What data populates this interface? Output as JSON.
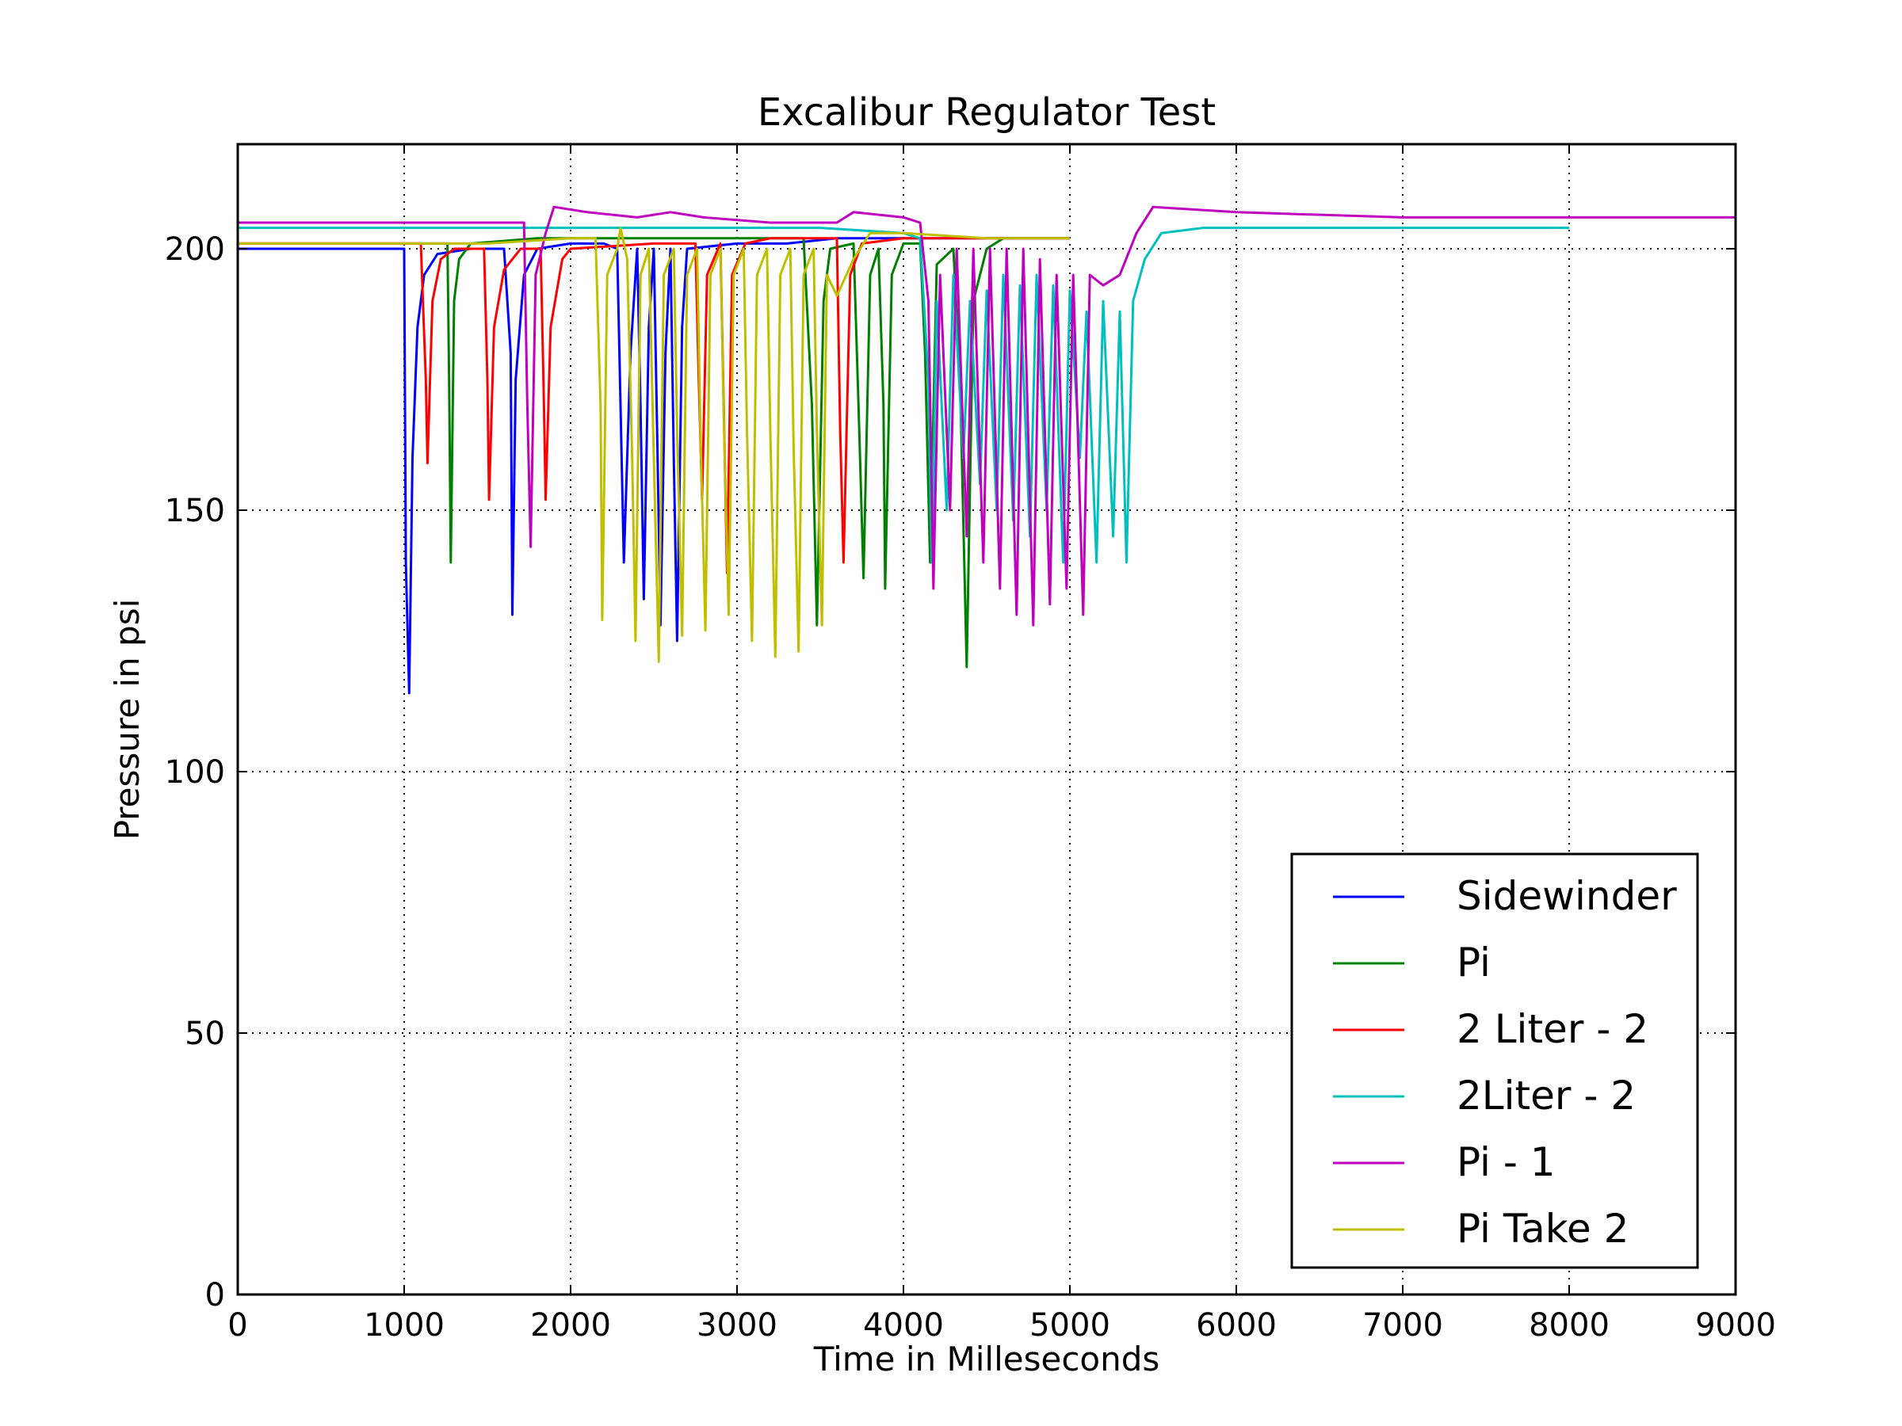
{
  "chart_data": {
    "type": "line",
    "title": "Excalibur Regulator Test",
    "xlabel": "Time in Milleseconds",
    "ylabel": "Pressure in psi",
    "xlim": [
      0,
      9000
    ],
    "ylim": [
      0,
      220
    ],
    "xticks": [
      0,
      1000,
      2000,
      3000,
      4000,
      5000,
      6000,
      7000,
      8000,
      9000
    ],
    "yticks": [
      0,
      50,
      100,
      150,
      200
    ],
    "grid": true,
    "legend_position": "lower-right",
    "series": [
      {
        "name": "Sidewinder",
        "color": "#0000ff",
        "points": [
          [
            0,
            200
          ],
          [
            300,
            200
          ],
          [
            600,
            200
          ],
          [
            900,
            200
          ],
          [
            1000,
            200
          ],
          [
            1010,
            140
          ],
          [
            1030,
            115
          ],
          [
            1050,
            160
          ],
          [
            1080,
            185
          ],
          [
            1120,
            195
          ],
          [
            1200,
            199
          ],
          [
            1400,
            200
          ],
          [
            1600,
            200
          ],
          [
            1640,
            180
          ],
          [
            1650,
            130
          ],
          [
            1670,
            175
          ],
          [
            1720,
            195
          ],
          [
            1800,
            200
          ],
          [
            2000,
            201
          ],
          [
            2200,
            201
          ],
          [
            2280,
            200
          ],
          [
            2300,
            170
          ],
          [
            2320,
            140
          ],
          [
            2360,
            180
          ],
          [
            2400,
            200
          ],
          [
            2420,
            170
          ],
          [
            2440,
            133
          ],
          [
            2470,
            185
          ],
          [
            2500,
            200
          ],
          [
            2520,
            165
          ],
          [
            2540,
            128
          ],
          [
            2570,
            180
          ],
          [
            2600,
            200
          ],
          [
            2620,
            160
          ],
          [
            2640,
            125
          ],
          [
            2670,
            185
          ],
          [
            2700,
            200
          ],
          [
            3000,
            201
          ],
          [
            3300,
            201
          ],
          [
            3600,
            202
          ],
          [
            4000,
            202
          ],
          [
            4500,
            202
          ],
          [
            5000,
            202
          ]
        ]
      },
      {
        "name": "Pi",
        "color": "#008000",
        "points": [
          [
            0,
            201
          ],
          [
            500,
            201
          ],
          [
            1000,
            201
          ],
          [
            1260,
            201
          ],
          [
            1270,
            175
          ],
          [
            1280,
            140
          ],
          [
            1300,
            190
          ],
          [
            1330,
            198
          ],
          [
            1400,
            201
          ],
          [
            1800,
            202
          ],
          [
            2400,
            202
          ],
          [
            3000,
            202
          ],
          [
            3400,
            202
          ],
          [
            3450,
            170
          ],
          [
            3480,
            128
          ],
          [
            3520,
            190
          ],
          [
            3560,
            200
          ],
          [
            3700,
            201
          ],
          [
            3730,
            170
          ],
          [
            3760,
            137
          ],
          [
            3800,
            195
          ],
          [
            3850,
            200
          ],
          [
            3880,
            170
          ],
          [
            3890,
            135
          ],
          [
            3930,
            195
          ],
          [
            4000,
            201
          ],
          [
            4100,
            201
          ],
          [
            4130,
            180
          ],
          [
            4160,
            140
          ],
          [
            4200,
            197
          ],
          [
            4300,
            200
          ],
          [
            4340,
            175
          ],
          [
            4380,
            120
          ],
          [
            4420,
            190
          ],
          [
            4500,
            200
          ],
          [
            4600,
            202
          ],
          [
            5000,
            202
          ]
        ]
      },
      {
        "name": "2 Liter - 2",
        "color": "#ff0000",
        "points": [
          [
            0,
            201
          ],
          [
            1000,
            201
          ],
          [
            1100,
            201
          ],
          [
            1130,
            175
          ],
          [
            1140,
            159
          ],
          [
            1170,
            190
          ],
          [
            1220,
            198
          ],
          [
            1300,
            200
          ],
          [
            1480,
            200
          ],
          [
            1500,
            175
          ],
          [
            1510,
            152
          ],
          [
            1540,
            185
          ],
          [
            1600,
            196
          ],
          [
            1700,
            200
          ],
          [
            1820,
            200
          ],
          [
            1840,
            170
          ],
          [
            1850,
            152
          ],
          [
            1880,
            185
          ],
          [
            1950,
            198
          ],
          [
            2000,
            200
          ],
          [
            2500,
            201
          ],
          [
            2750,
            201
          ],
          [
            2770,
            175
          ],
          [
            2790,
            152
          ],
          [
            2820,
            195
          ],
          [
            2900,
            201
          ],
          [
            2920,
            170
          ],
          [
            2940,
            138
          ],
          [
            2970,
            195
          ],
          [
            3050,
            201
          ],
          [
            3200,
            202
          ],
          [
            3500,
            202
          ],
          [
            3600,
            202
          ],
          [
            3620,
            165
          ],
          [
            3640,
            140
          ],
          [
            3680,
            195
          ],
          [
            3750,
            201
          ],
          [
            4000,
            202
          ],
          [
            5000,
            202
          ]
        ]
      },
      {
        "name": "2Liter - 2",
        "color": "#00bfbf",
        "points": [
          [
            0,
            204
          ],
          [
            1000,
            204
          ],
          [
            2000,
            204
          ],
          [
            3000,
            204
          ],
          [
            3500,
            204
          ],
          [
            4000,
            203
          ],
          [
            4100,
            202
          ],
          [
            4150,
            175
          ],
          [
            4170,
            140
          ],
          [
            4200,
            190
          ],
          [
            4260,
            150
          ],
          [
            4300,
            195
          ],
          [
            4360,
            160
          ],
          [
            4400,
            190
          ],
          [
            4460,
            155
          ],
          [
            4500,
            192
          ],
          [
            4560,
            150
          ],
          [
            4600,
            195
          ],
          [
            4660,
            148
          ],
          [
            4700,
            193
          ],
          [
            4760,
            145
          ],
          [
            4800,
            195
          ],
          [
            4860,
            150
          ],
          [
            4900,
            193
          ],
          [
            4960,
            140
          ],
          [
            5000,
            192
          ],
          [
            5060,
            160
          ],
          [
            5100,
            188
          ],
          [
            5160,
            140
          ],
          [
            5200,
            190
          ],
          [
            5260,
            145
          ],
          [
            5300,
            188
          ],
          [
            5340,
            140
          ],
          [
            5380,
            190
          ],
          [
            5450,
            198
          ],
          [
            5550,
            203
          ],
          [
            5800,
            204
          ],
          [
            6500,
            204
          ],
          [
            7000,
            204
          ],
          [
            7500,
            204
          ],
          [
            8000,
            204
          ]
        ]
      },
      {
        "name": "Pi - 1",
        "color": "#bf00bf",
        "points": [
          [
            0,
            205
          ],
          [
            1000,
            205
          ],
          [
            1500,
            205
          ],
          [
            1720,
            205
          ],
          [
            1740,
            170
          ],
          [
            1760,
            143
          ],
          [
            1790,
            195
          ],
          [
            1850,
            203
          ],
          [
            1900,
            208
          ],
          [
            2100,
            207
          ],
          [
            2400,
            206
          ],
          [
            2600,
            207
          ],
          [
            2800,
            206
          ],
          [
            3200,
            205
          ],
          [
            3600,
            205
          ],
          [
            3700,
            207
          ],
          [
            4000,
            206
          ],
          [
            4100,
            205
          ],
          [
            4150,
            190
          ],
          [
            4180,
            135
          ],
          [
            4220,
            195
          ],
          [
            4280,
            150
          ],
          [
            4320,
            200
          ],
          [
            4380,
            145
          ],
          [
            4420,
            200
          ],
          [
            4480,
            140
          ],
          [
            4520,
            200
          ],
          [
            4580,
            135
          ],
          [
            4620,
            200
          ],
          [
            4680,
            130
          ],
          [
            4720,
            200
          ],
          [
            4780,
            128
          ],
          [
            4820,
            198
          ],
          [
            4880,
            132
          ],
          [
            4920,
            195
          ],
          [
            4980,
            135
          ],
          [
            5020,
            195
          ],
          [
            5080,
            130
          ],
          [
            5120,
            195
          ],
          [
            5200,
            193
          ],
          [
            5300,
            195
          ],
          [
            5400,
            203
          ],
          [
            5500,
            208
          ],
          [
            6000,
            207
          ],
          [
            7000,
            206
          ],
          [
            8000,
            206
          ],
          [
            9000,
            206
          ]
        ]
      },
      {
        "name": "Pi Take 2",
        "color": "#bfbf00",
        "points": [
          [
            0,
            201
          ],
          [
            1000,
            201
          ],
          [
            1500,
            201
          ],
          [
            2000,
            202
          ],
          [
            2150,
            202
          ],
          [
            2180,
            170
          ],
          [
            2190,
            129
          ],
          [
            2220,
            195
          ],
          [
            2280,
            200
          ],
          [
            2300,
            204
          ],
          [
            2340,
            198
          ],
          [
            2370,
            160
          ],
          [
            2390,
            125
          ],
          [
            2420,
            195
          ],
          [
            2470,
            200
          ],
          [
            2500,
            160
          ],
          [
            2530,
            121
          ],
          [
            2560,
            195
          ],
          [
            2620,
            200
          ],
          [
            2640,
            165
          ],
          [
            2670,
            126
          ],
          [
            2700,
            195
          ],
          [
            2760,
            200
          ],
          [
            2780,
            165
          ],
          [
            2810,
            127
          ],
          [
            2840,
            195
          ],
          [
            2900,
            200
          ],
          [
            2920,
            168
          ],
          [
            2950,
            130
          ],
          [
            2980,
            195
          ],
          [
            3040,
            200
          ],
          [
            3060,
            165
          ],
          [
            3090,
            125
          ],
          [
            3120,
            195
          ],
          [
            3180,
            200
          ],
          [
            3200,
            165
          ],
          [
            3230,
            122
          ],
          [
            3260,
            195
          ],
          [
            3320,
            200
          ],
          [
            3340,
            162
          ],
          [
            3370,
            123
          ],
          [
            3400,
            195
          ],
          [
            3460,
            200
          ],
          [
            3480,
            165
          ],
          [
            3510,
            128
          ],
          [
            3540,
            195
          ],
          [
            3600,
            191
          ],
          [
            3700,
            198
          ],
          [
            3800,
            203
          ],
          [
            4000,
            203
          ],
          [
            4500,
            202
          ],
          [
            5000,
            202
          ]
        ]
      }
    ]
  }
}
